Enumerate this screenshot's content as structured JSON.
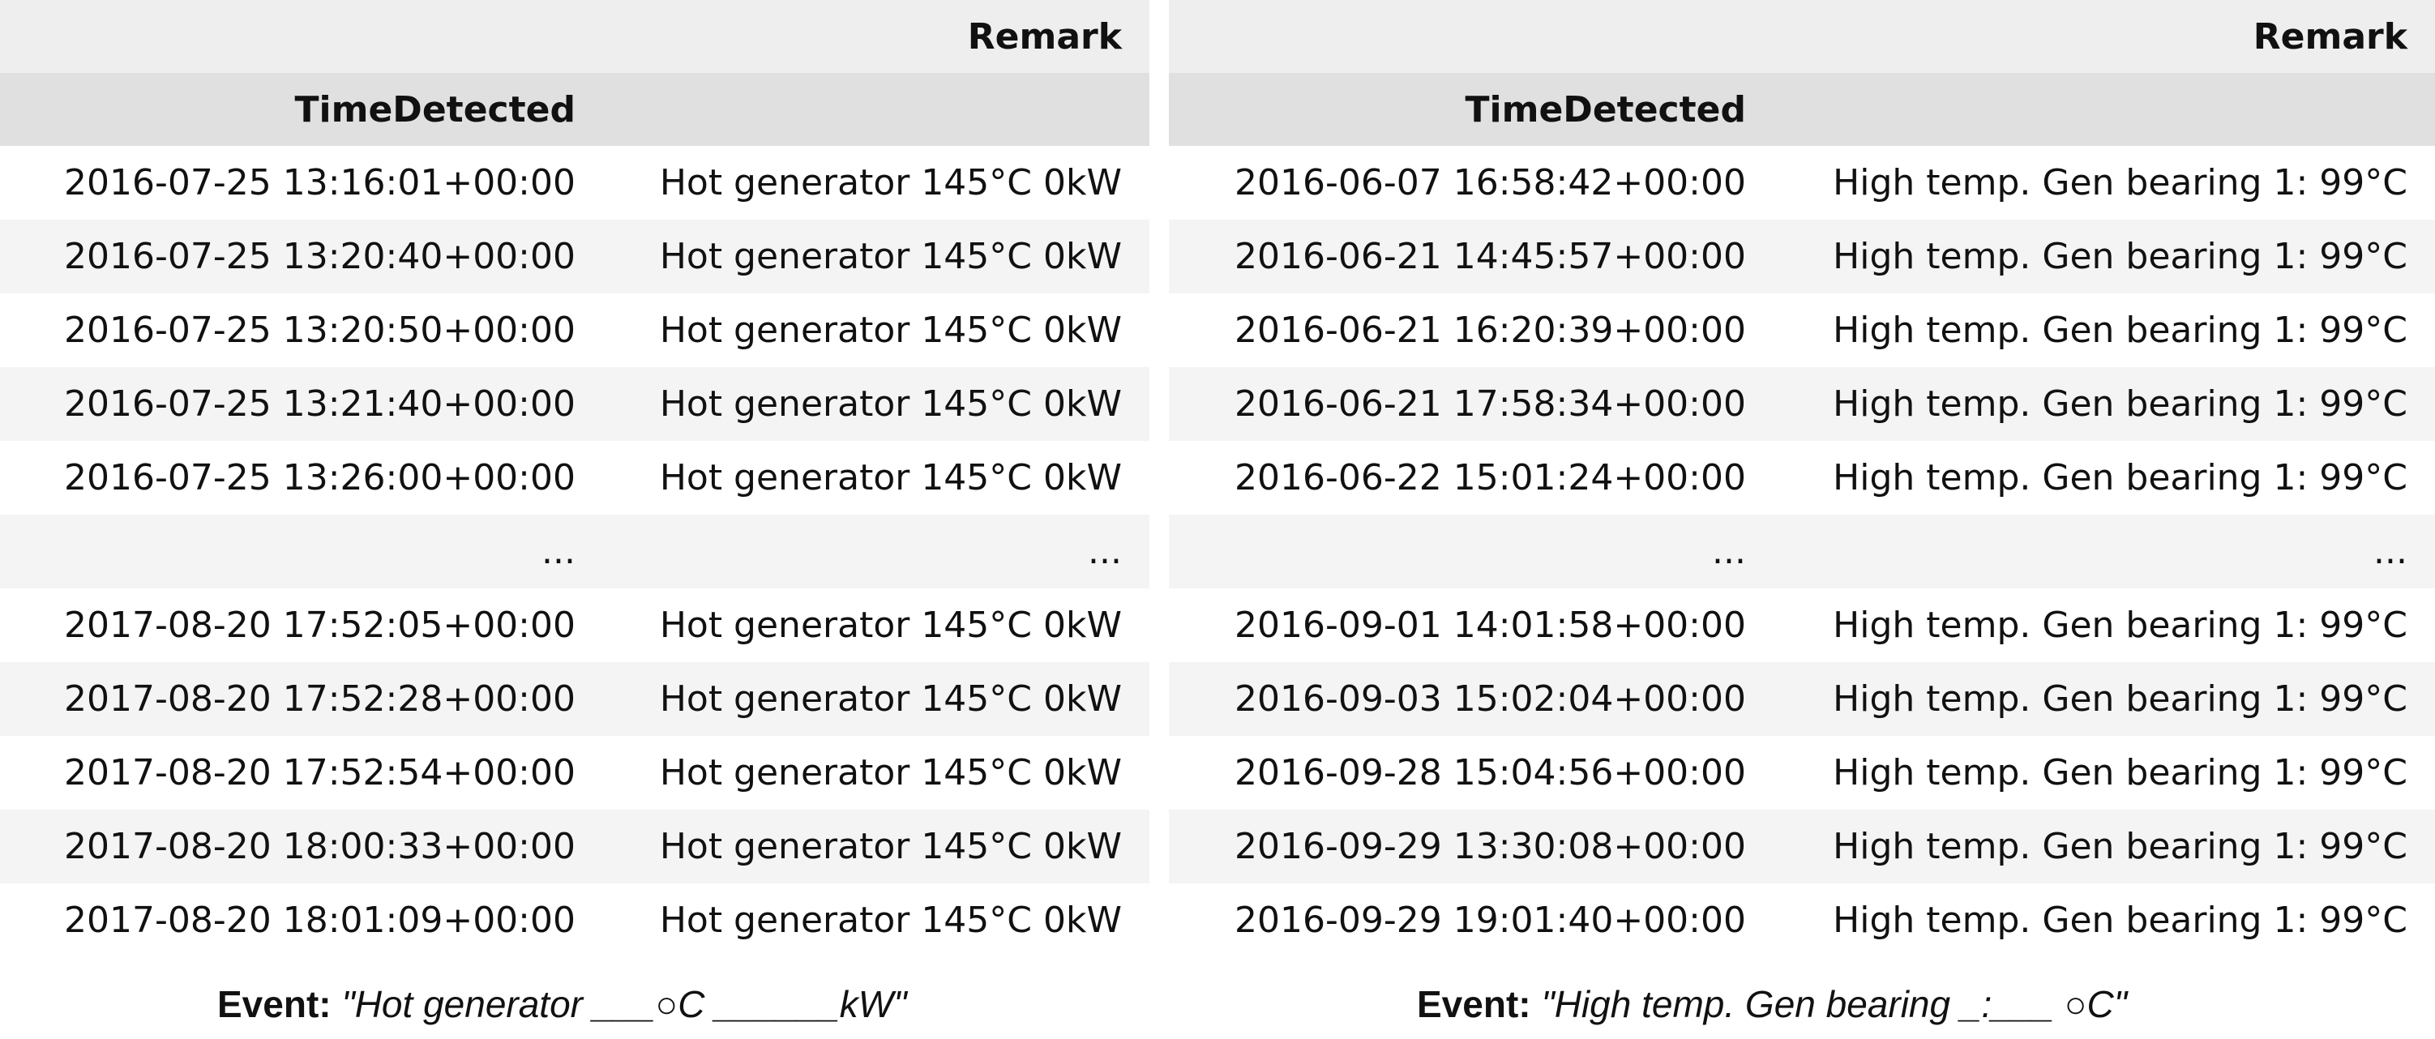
{
  "left_table": {
    "header_remark": "Remark",
    "header_time": "TimeDetected",
    "rows": [
      {
        "time": "2016-07-25 13:16:01+00:00",
        "remark": "Hot generator 145°C 0kW"
      },
      {
        "time": "2016-07-25 13:20:40+00:00",
        "remark": "Hot generator 145°C 0kW"
      },
      {
        "time": "2016-07-25 13:20:50+00:00",
        "remark": "Hot generator 145°C 0kW"
      },
      {
        "time": "2016-07-25 13:21:40+00:00",
        "remark": "Hot generator 145°C 0kW"
      },
      {
        "time": "2016-07-25 13:26:00+00:00",
        "remark": "Hot generator 145°C 0kW"
      },
      {
        "time": "...",
        "remark": "..."
      },
      {
        "time": "2017-08-20 17:52:05+00:00",
        "remark": "Hot generator 145°C 0kW"
      },
      {
        "time": "2017-08-20 17:52:28+00:00",
        "remark": "Hot generator 145°C 0kW"
      },
      {
        "time": "2017-08-20 17:52:54+00:00",
        "remark": "Hot generator 145°C 0kW"
      },
      {
        "time": "2017-08-20 18:00:33+00:00",
        "remark": "Hot generator 145°C 0kW"
      },
      {
        "time": "2017-08-20 18:01:09+00:00",
        "remark": "Hot generator 145°C 0kW"
      }
    ],
    "caption_label": "Event:",
    "caption_text": "\"Hot generator ___○C ______kW\""
  },
  "right_table": {
    "header_remark": "Remark",
    "header_time": "TimeDetected",
    "rows": [
      {
        "time": "2016-06-07 16:58:42+00:00",
        "remark": "High temp. Gen bearing 1: 99°C"
      },
      {
        "time": "2016-06-21 14:45:57+00:00",
        "remark": "High temp. Gen bearing 1: 99°C"
      },
      {
        "time": "2016-06-21 16:20:39+00:00",
        "remark": "High temp. Gen bearing 1: 99°C"
      },
      {
        "time": "2016-06-21 17:58:34+00:00",
        "remark": "High temp. Gen bearing 1: 99°C"
      },
      {
        "time": "2016-06-22 15:01:24+00:00",
        "remark": "High temp. Gen bearing 1: 99°C"
      },
      {
        "time": "...",
        "remark": "..."
      },
      {
        "time": "2016-09-01 14:01:58+00:00",
        "remark": "High temp. Gen bearing 1: 99°C"
      },
      {
        "time": "2016-09-03 15:02:04+00:00",
        "remark": "High temp. Gen bearing 1: 99°C"
      },
      {
        "time": "2016-09-28 15:04:56+00:00",
        "remark": "High temp. Gen bearing 1: 99°C"
      },
      {
        "time": "2016-09-29 13:30:08+00:00",
        "remark": "High temp. Gen bearing 1: 99°C"
      },
      {
        "time": "2016-09-29 19:01:40+00:00",
        "remark": "High temp. Gen bearing 1: 99°C"
      }
    ],
    "caption_label": "Event:",
    "caption_text": "\"High temp. Gen bearing _:___  ○C\""
  }
}
